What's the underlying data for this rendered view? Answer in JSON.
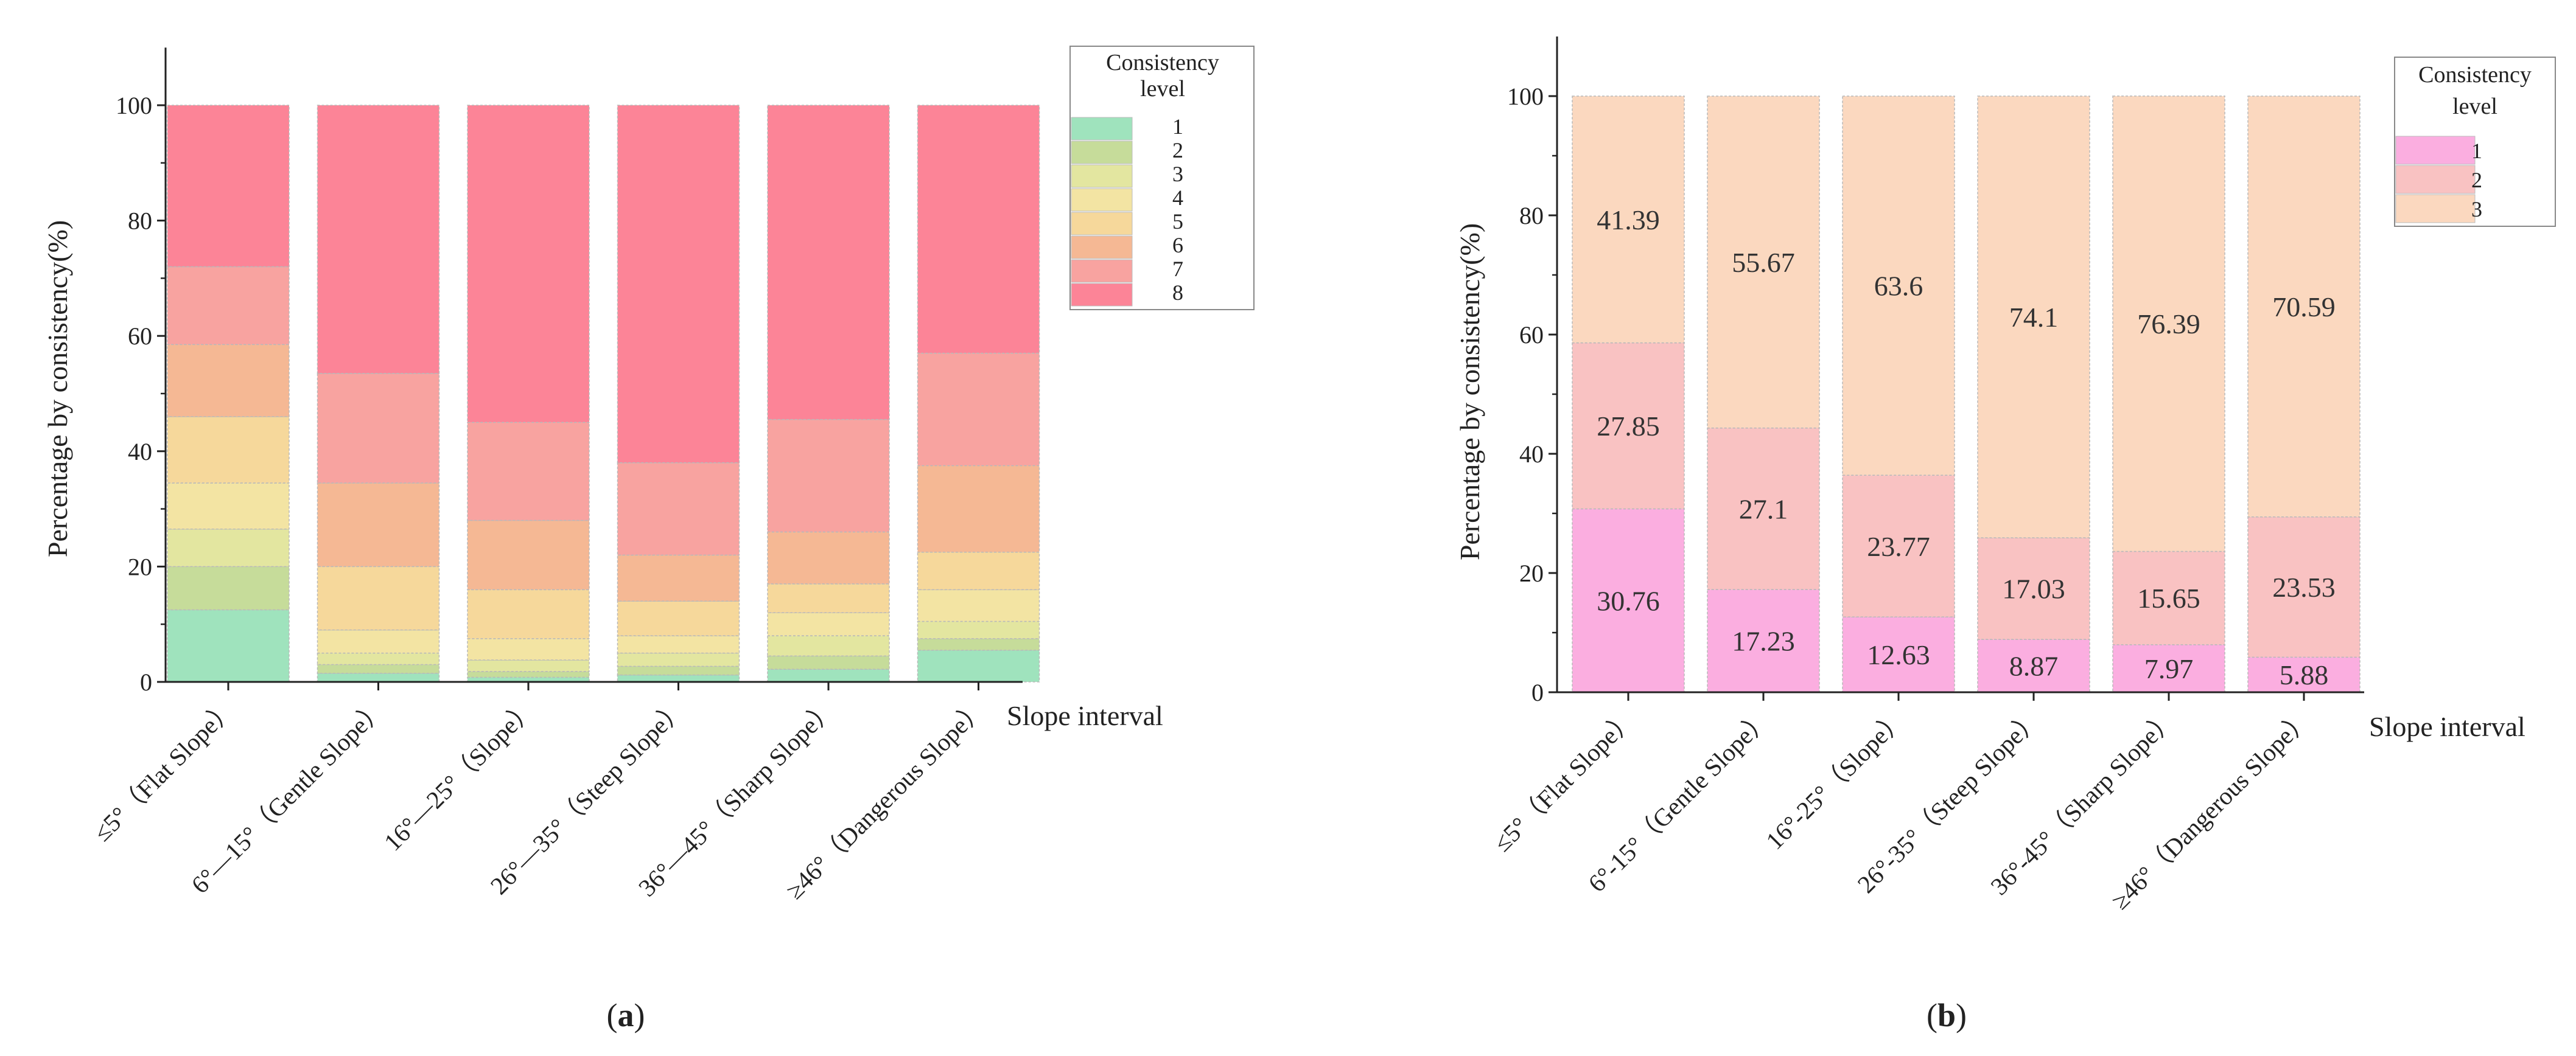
{
  "chart_data": [
    {
      "type": "bar",
      "stacked": true,
      "panel_label": "a",
      "ylabel": "Percentage by consistency(%)",
      "xlabel": "Slope interval",
      "ylim": [
        0,
        110
      ],
      "yticks": [
        0,
        20,
        40,
        60,
        80,
        100
      ],
      "grid": false,
      "legend": {
        "title": "Consistency level",
        "position": "top-right"
      },
      "categories": [
        "≤5°（Flat Slope）",
        "6°—15°（Gentle Slope）",
        "16°—25°（Slope）",
        "26°—35°（Steep Slope）",
        "36°—45°（Sharp Slope）",
        "≥46°（Dangerous Slope）"
      ],
      "series": [
        {
          "name": "1",
          "color": "#9fe3bd",
          "values": [
            12.5,
            1.5,
            0.8,
            1.2,
            2.2,
            5.5
          ]
        },
        {
          "name": "2",
          "color": "#c6dc9a",
          "values": [
            7.5,
            1.5,
            1.0,
            1.5,
            2.3,
            2.0
          ]
        },
        {
          "name": "3",
          "color": "#e3e6a0",
          "values": [
            6.5,
            2.0,
            2.0,
            2.3,
            3.5,
            3.0
          ]
        },
        {
          "name": "4",
          "color": "#f3e4a3",
          "values": [
            8.0,
            4.0,
            3.7,
            3.0,
            4.0,
            5.5
          ]
        },
        {
          "name": "5",
          "color": "#f6d89b",
          "values": [
            11.5,
            11.0,
            8.5,
            6.0,
            5.0,
            6.5
          ]
        },
        {
          "name": "6",
          "color": "#f5b894",
          "values": [
            12.5,
            14.5,
            12.0,
            8.0,
            9.0,
            15.0
          ]
        },
        {
          "name": "7",
          "color": "#f8a3a0",
          "values": [
            13.5,
            19.0,
            17.0,
            16.0,
            19.5,
            19.5
          ]
        },
        {
          "name": "8",
          "color": "#fc8497",
          "values": [
            28.0,
            46.5,
            55.0,
            62.0,
            54.5,
            43.0
          ]
        }
      ]
    },
    {
      "type": "bar",
      "stacked": true,
      "panel_label": "b",
      "ylabel": "Percentage by consistency(%)",
      "xlabel": "Slope interval",
      "ylim": [
        0,
        110
      ],
      "yticks": [
        0,
        20,
        40,
        60,
        80,
        100
      ],
      "grid": false,
      "legend": {
        "title": "Consistency level",
        "position": "top-right"
      },
      "categories": [
        "≤5°（Flat Slope）",
        "6°-15°（Gentle Slope）",
        "16°-25°（Slope）",
        "26°-35°（Steep Slope）",
        "36°-45°（Sharp Slope）",
        "≥46°（Dangerous Slope）"
      ],
      "series": [
        {
          "name": "1",
          "color": "#fbaee0",
          "values": [
            30.76,
            17.23,
            12.63,
            8.87,
            7.97,
            5.88
          ]
        },
        {
          "name": "2",
          "color": "#f9c2c2",
          "values": [
            27.85,
            27.1,
            23.77,
            17.03,
            15.65,
            23.53
          ]
        },
        {
          "name": "3",
          "color": "#fbd8bf",
          "values": [
            41.39,
            55.67,
            63.6,
            74.1,
            76.39,
            70.59
          ]
        }
      ],
      "data_labels": [
        [
          "30.76",
          "17.23",
          "12.63",
          "8.87",
          "7.97",
          "5.88"
        ],
        [
          "27.85",
          "27.1",
          "23.77",
          "17.03",
          "15.65",
          "23.53"
        ],
        [
          "41.39",
          "55.67",
          "63.6",
          "74.1",
          "76.39",
          "70.59"
        ]
      ]
    }
  ]
}
